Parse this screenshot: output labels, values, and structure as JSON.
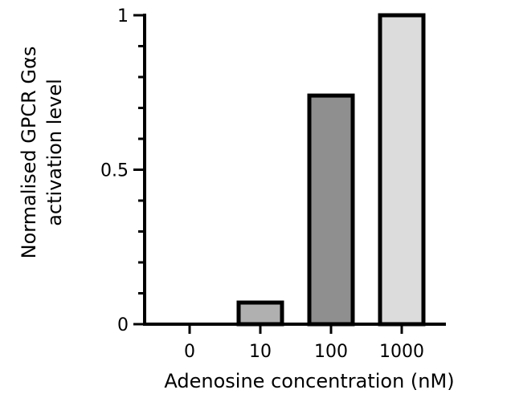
{
  "chart_data": {
    "type": "bar",
    "categories": [
      "0",
      "10",
      "100",
      "1000"
    ],
    "values": [
      0,
      0.07,
      0.74,
      1.0
    ],
    "bar_colors": [
      "#ffffff",
      "#b0b0b0",
      "#8f8f8f",
      "#dcdcdc"
    ],
    "xlabel": "Adenosine concentration (nM)",
    "ylabel_line1": "Normalised GPCR Gαs",
    "ylabel_line2": "activation level",
    "ylim": [
      0,
      1
    ],
    "yticks": [
      {
        "value": 0,
        "label": "0"
      },
      {
        "value": 0.5,
        "label": "0.5"
      },
      {
        "value": 1,
        "label": "1"
      }
    ],
    "grid": false,
    "legend": "none"
  }
}
